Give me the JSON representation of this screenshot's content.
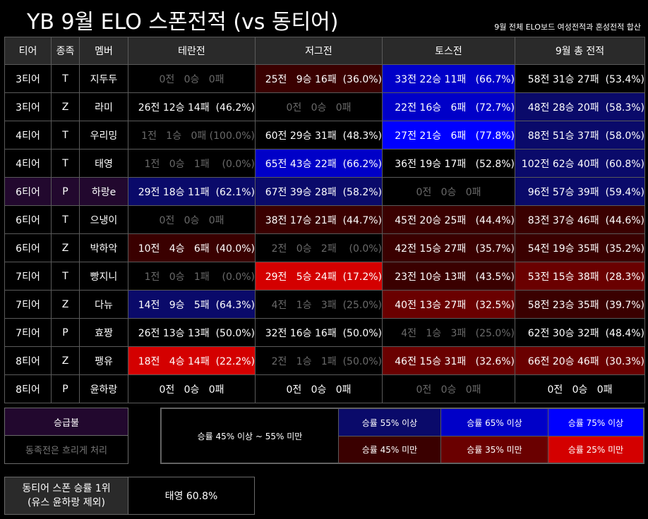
{
  "title": "YB 9월 ELO 스폰전적 (vs 동티어)",
  "note": "9월 전체 ELO보드 여성전적과 혼성전적 합산",
  "headers": [
    "티어",
    "종족",
    "멤버",
    "테란전",
    "저그전",
    "토스전",
    "9월 총 전적"
  ],
  "rows": [
    {
      "tier": "3티어",
      "race": "T",
      "member": "지두두",
      "t": "0전   0승   0패",
      "z": "25전   9승 16패  (36.0%)",
      "p": "33전 22승 11패   (66.7%)",
      "total": "58전 31승 27패  (53.4%)"
    },
    {
      "tier": "3티어",
      "race": "Z",
      "member": "라미",
      "t": "26전 12승 14패  (46.2%)",
      "z": "0전   0승   0패",
      "p": "22전 16승   6패   (72.7%)",
      "total": "48전 28승 20패  (58.3%)"
    },
    {
      "tier": "4티어",
      "race": "T",
      "member": "우리밍",
      "t": "1전   1승   0패 (100.0%)",
      "z": "60전 29승 31패  (48.3%)",
      "p": "27전 21승   6패   (77.8%)",
      "total": "88전 51승 37패  (58.0%)"
    },
    {
      "tier": "4티어",
      "race": "T",
      "member": "태영",
      "t": "1전   0승   1패    (0.0%)",
      "z": "65전 43승 22패  (66.2%)",
      "p": "36전 19승 17패   (52.8%)",
      "total": "102전 62승 40패  (60.8%)"
    },
    {
      "tier": "6티어",
      "race": "P",
      "member": "하랑e",
      "t": "29전 18승 11패  (62.1%)",
      "z": "67전 39승 28패  (58.2%)",
      "p": "0전   0승   0패",
      "total": "96전 57승 39패  (59.4%)"
    },
    {
      "tier": "6티어",
      "race": "T",
      "member": "으냉이",
      "t": "0전   0승   0패",
      "z": "38전 17승 21패  (44.7%)",
      "p": "45전 20승 25패   (44.4%)",
      "total": "83전 37승 46패  (44.6%)"
    },
    {
      "tier": "6티어",
      "race": "Z",
      "member": "박하악",
      "t": "10전   4승   6패  (40.0%)",
      "z": "2전   0승   2패    (0.0%)",
      "p": "42전 15승 27패   (35.7%)",
      "total": "54전 19승 35패  (35.2%)"
    },
    {
      "tier": "7티어",
      "race": "T",
      "member": "빵지니",
      "t": "1전   0승   1패    (0.0%)",
      "z": "29전   5승 24패  (17.2%)",
      "p": "23전 10승 13패   (43.5%)",
      "total": "53전 15승 38패  (28.3%)"
    },
    {
      "tier": "7티어",
      "race": "Z",
      "member": "다뉴",
      "t": "14전   9승   5패  (64.3%)",
      "z": "4전   1승   3패  (25.0%)",
      "p": "40전 13승 27패   (32.5%)",
      "total": "58전 23승 35패  (39.7%)"
    },
    {
      "tier": "7티어",
      "race": "P",
      "member": "효짱",
      "t": "26전 13승 13패  (50.0%)",
      "z": "32전 16승 16패  (50.0%)",
      "p": "4전   1승   3패   (25.0%)",
      "total": "62전 30승 32패  (48.4%)"
    },
    {
      "tier": "8티어",
      "race": "Z",
      "member": "팽유",
      "t": "18전   4승 14패  (22.2%)",
      "z": "2전   1승   1패  (50.0%)",
      "p": "46전 15승 31패   (32.6%)",
      "total": "66전 20승 46패  (30.3%)"
    },
    {
      "tier": "8티어",
      "race": "P",
      "member": "윤하랑",
      "t": "0전   0승   0패",
      "z": "0전   0승   0패",
      "p": "0전   0승   0패",
      "total": "0전   0승   0패"
    }
  ],
  "colors": {
    "blue1": "#0a0a6a",
    "blue2": "#0000c8",
    "blue3": "#0000ff",
    "red1": "#3a0000",
    "red2": "#6a0000",
    "red3": "#d40000",
    "purple": "#22082e"
  },
  "promo": {
    "label": "승급불",
    "sub": "동족전은 흐리게 처리"
  },
  "legend": {
    "neutral": "승률 45% 이상 ~ 55% 미만",
    "b55": "승률 55% 이상",
    "b65": "승률 65% 이상",
    "b75": "승률 75% 이상",
    "r45": "승률 45% 미만",
    "r35": "승률 35% 미만",
    "r25": "승률 25% 미만"
  },
  "top": {
    "label_line1": "동티어 스폰 승률 1위",
    "label_line2": "(유스 윤하랑 제외)",
    "value": "태영 60.8%"
  }
}
